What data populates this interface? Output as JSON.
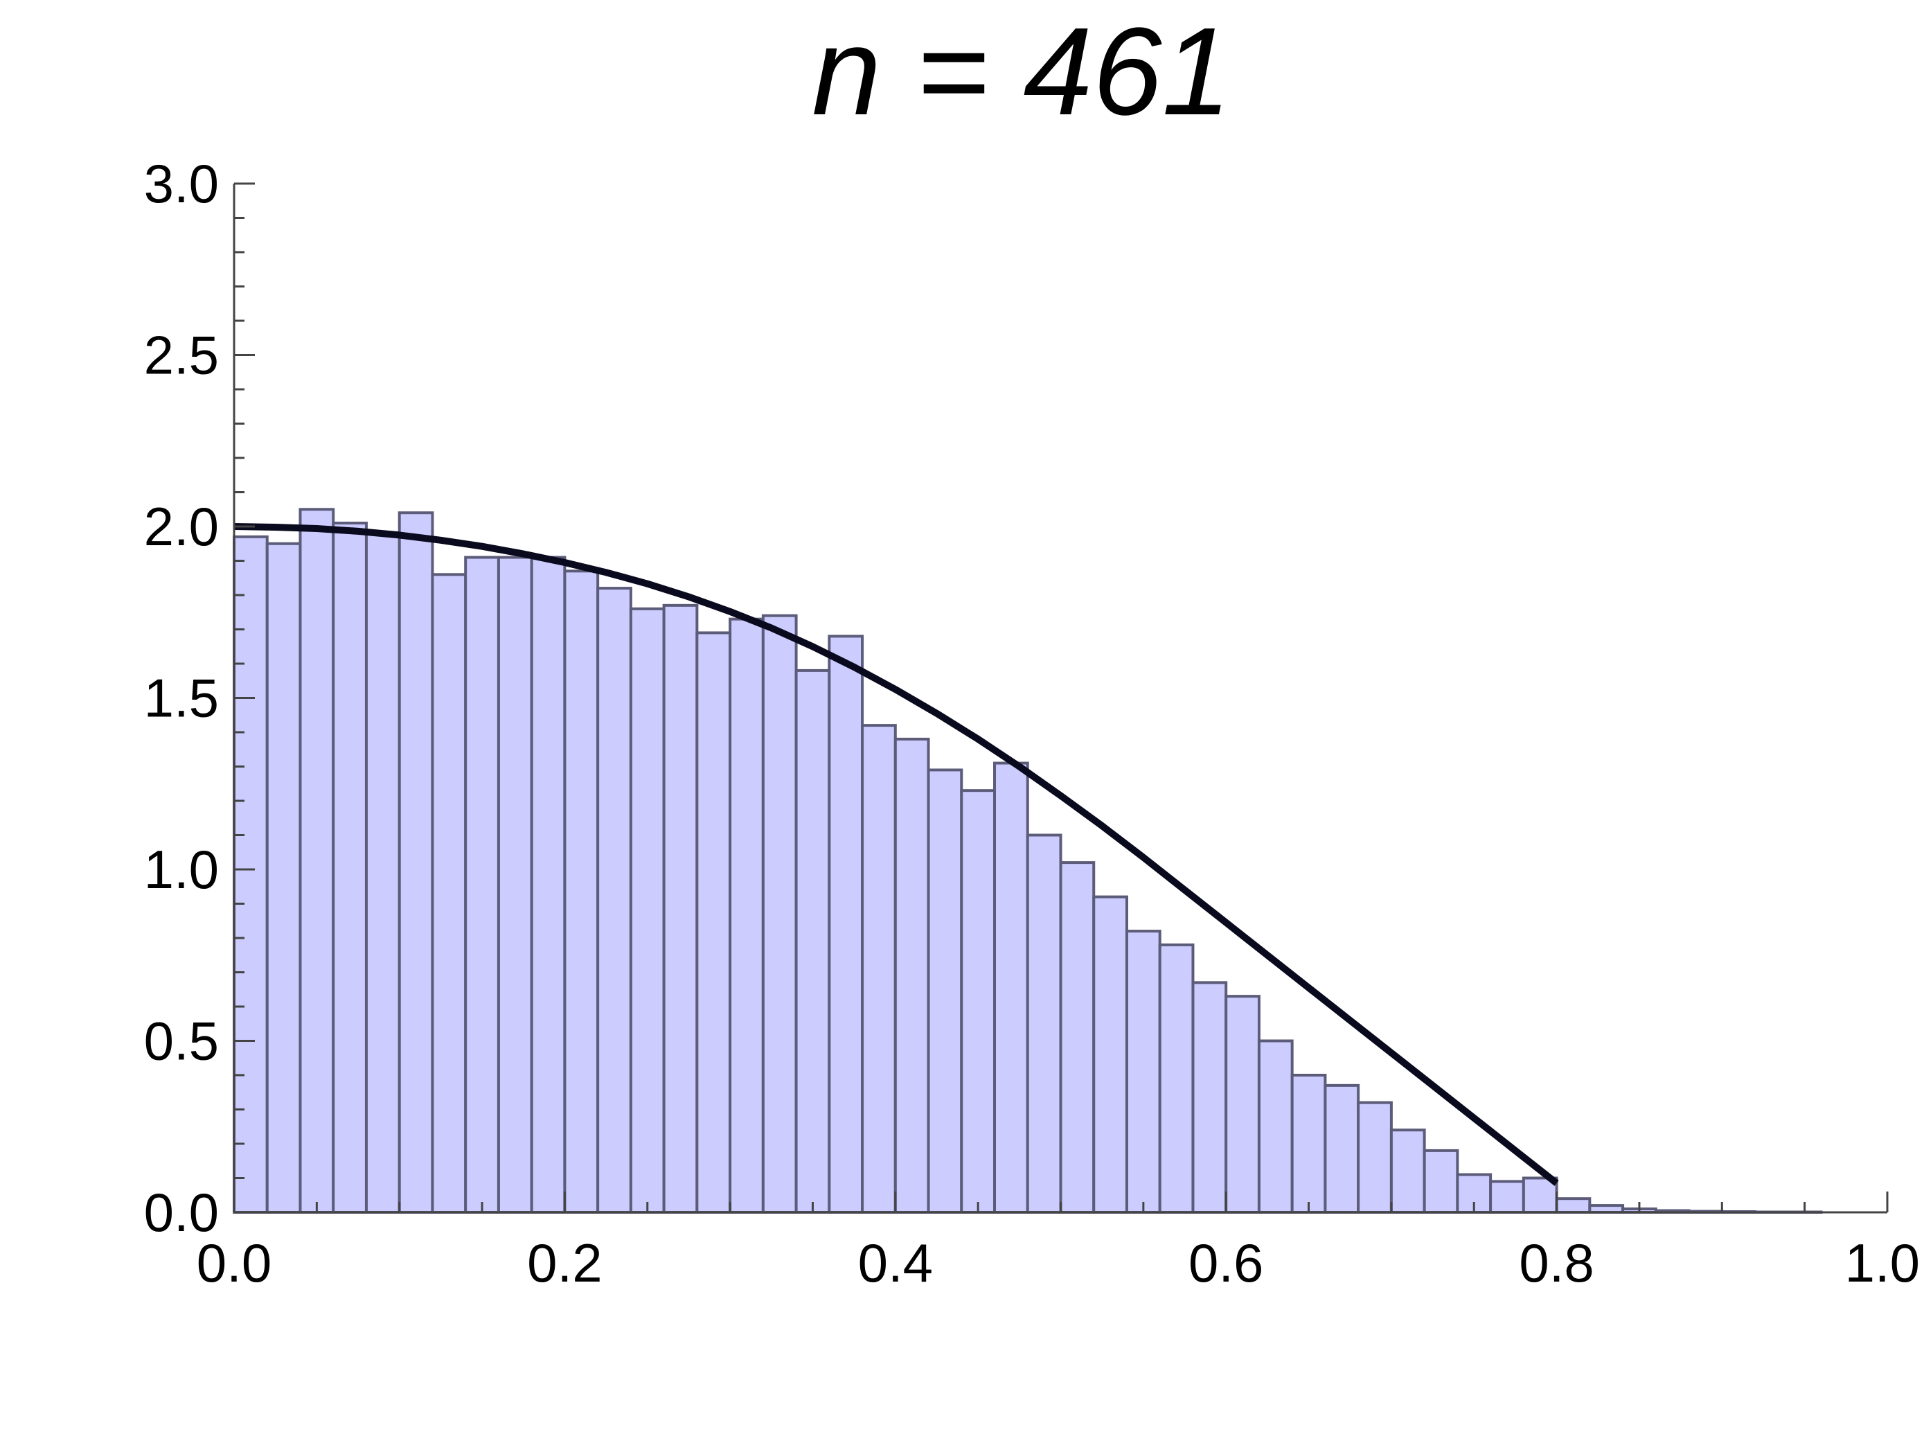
{
  "chart_data": {
    "type": "bar",
    "title": "n = 461",
    "xlabel": "",
    "ylabel": "",
    "xlim": [
      0,
      1.0
    ],
    "ylim": [
      0,
      3.0
    ],
    "grid": false,
    "x_ticks": [
      "0.0",
      "0.2",
      "0.4",
      "0.6",
      "0.8",
      "1.0"
    ],
    "y_ticks": [
      "0.0",
      "0.5",
      "1.0",
      "1.5",
      "2.0",
      "2.5",
      "3.0"
    ],
    "bin_width": 0.02,
    "bins_start": 0.0,
    "bar_color": "#ccccff",
    "curve_color": "#0a0a1e",
    "values": [
      1.97,
      1.95,
      2.05,
      2.01,
      1.98,
      2.04,
      1.86,
      1.91,
      1.91,
      1.91,
      1.87,
      1.82,
      1.76,
      1.77,
      1.69,
      1.73,
      1.74,
      1.58,
      1.68,
      1.42,
      1.38,
      1.29,
      1.23,
      1.31,
      1.1,
      1.02,
      0.92,
      0.82,
      0.78,
      0.67,
      0.63,
      0.5,
      0.4,
      0.37,
      0.32,
      0.24,
      0.18,
      0.11,
      0.09,
      0.1,
      0.04,
      0.02,
      0.01,
      0.005,
      0.003,
      0.002,
      0.001,
      0.001,
      0.0,
      0.0
    ],
    "curve": {
      "x": [
        0.0,
        0.025,
        0.05,
        0.075,
        0.1,
        0.125,
        0.15,
        0.175,
        0.2,
        0.225,
        0.25,
        0.275,
        0.3,
        0.325,
        0.35,
        0.375,
        0.4,
        0.425,
        0.45,
        0.475,
        0.5,
        0.525,
        0.55,
        0.575,
        0.6,
        0.625,
        0.65,
        0.675,
        0.7,
        0.725,
        0.75,
        0.775,
        0.8
      ],
      "y": [
        2.0,
        1.998,
        1.994,
        1.986,
        1.975,
        1.96,
        1.942,
        1.92,
        1.895,
        1.866,
        1.833,
        1.795,
        1.752,
        1.704,
        1.65,
        1.59,
        1.525,
        1.455,
        1.38,
        1.3,
        1.215,
        1.127,
        1.035,
        0.94,
        0.845,
        0.75,
        0.655,
        0.56,
        0.465,
        0.37,
        0.275,
        0.18,
        0.085
      ]
    }
  }
}
